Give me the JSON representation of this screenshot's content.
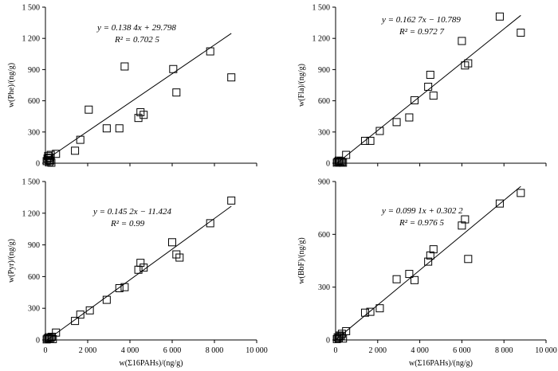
{
  "chart_data": [
    {
      "type": "scatter",
      "ylabel": "w(Phe)/(ng/g)",
      "xlabel": "",
      "xlim": [
        0,
        10000
      ],
      "ylim": [
        0,
        1500
      ],
      "xticks": [
        0,
        2000,
        4000,
        6000,
        8000,
        10000
      ],
      "xtick_labels": [
        "0",
        "2 000",
        "4 000",
        "6 000",
        "8 000",
        "10 000"
      ],
      "yticks": [
        0,
        300,
        600,
        900,
        1200,
        1500
      ],
      "ytick_labels": [
        "0",
        "300",
        "600",
        "900",
        "1 200",
        "1 500"
      ],
      "show_xtick_labels": false,
      "equation": "y = 0.138 4x + 29.798",
      "r2": "R² = 0.702 5",
      "fit": {
        "slope": 0.1384,
        "intercept": 29.798,
        "x_range": [
          0,
          8800
        ]
      },
      "points": [
        [
          60,
          20
        ],
        [
          100,
          45
        ],
        [
          130,
          70
        ],
        [
          160,
          30
        ],
        [
          180,
          10
        ],
        [
          200,
          55
        ],
        [
          230,
          25
        ],
        [
          250,
          80
        ],
        [
          280,
          5
        ],
        [
          500,
          90
        ],
        [
          1400,
          120
        ],
        [
          1650,
          225
        ],
        [
          2050,
          515
        ],
        [
          2900,
          335
        ],
        [
          3500,
          335
        ],
        [
          3750,
          930
        ],
        [
          4400,
          435
        ],
        [
          4500,
          490
        ],
        [
          4650,
          465
        ],
        [
          6050,
          905
        ],
        [
          6200,
          680
        ],
        [
          7800,
          1075
        ],
        [
          8800,
          825
        ]
      ]
    },
    {
      "type": "scatter",
      "ylabel": "w(Fla)/(ng/g)",
      "xlabel": "",
      "xlim": [
        0,
        10000
      ],
      "ylim": [
        0,
        1500
      ],
      "xticks": [
        0,
        2000,
        4000,
        6000,
        8000,
        10000
      ],
      "xtick_labels": [
        "0",
        "2 000",
        "4 000",
        "6 000",
        "8 000",
        "10 000"
      ],
      "yticks": [
        0,
        300,
        600,
        900,
        1200,
        1500
      ],
      "ytick_labels": [
        "0",
        "300",
        "600",
        "900",
        "1 200",
        "1 500"
      ],
      "show_xtick_labels": false,
      "equation": "y = 0.162 7x − 10.789",
      "r2": "R² = 0.972 7",
      "fit": {
        "slope": 0.1627,
        "intercept": -10.789,
        "x_range": [
          0,
          8800
        ]
      },
      "points": [
        [
          60,
          5
        ],
        [
          100,
          15
        ],
        [
          150,
          25
        ],
        [
          200,
          10
        ],
        [
          250,
          20
        ],
        [
          300,
          12
        ],
        [
          350,
          5
        ],
        [
          500,
          80
        ],
        [
          1400,
          215
        ],
        [
          1650,
          215
        ],
        [
          2100,
          310
        ],
        [
          2900,
          395
        ],
        [
          3500,
          440
        ],
        [
          3750,
          605
        ],
        [
          4400,
          735
        ],
        [
          4500,
          850
        ],
        [
          4650,
          650
        ],
        [
          6000,
          1175
        ],
        [
          6150,
          940
        ],
        [
          6300,
          960
        ],
        [
          7800,
          1410
        ],
        [
          8800,
          1255
        ]
      ]
    },
    {
      "type": "scatter",
      "ylabel": "w(Pyr)/(ng/g)",
      "xlabel": "w(Σ16PAHs)/(ng/g)",
      "xlim": [
        0,
        10000
      ],
      "ylim": [
        0,
        1500
      ],
      "xticks": [
        0,
        2000,
        4000,
        6000,
        8000,
        10000
      ],
      "xtick_labels": [
        "0",
        "2 000",
        "4 000",
        "6 000",
        "8 000",
        "10 000"
      ],
      "yticks": [
        0,
        300,
        600,
        900,
        1200,
        1500
      ],
      "ytick_labels": [
        "0",
        "300",
        "600",
        "900",
        "1 200",
        "1 500"
      ],
      "show_xtick_labels": true,
      "equation": "y = 0.145 2x − 11.424",
      "r2": "R² = 0.99",
      "fit": {
        "slope": 0.1452,
        "intercept": -11.424,
        "x_range": [
          0,
          8800
        ]
      },
      "points": [
        [
          60,
          5
        ],
        [
          100,
          15
        ],
        [
          150,
          25
        ],
        [
          200,
          10
        ],
        [
          250,
          20
        ],
        [
          300,
          30
        ],
        [
          350,
          8
        ],
        [
          500,
          70
        ],
        [
          1400,
          180
        ],
        [
          1650,
          240
        ],
        [
          2100,
          280
        ],
        [
          2900,
          380
        ],
        [
          3500,
          490
        ],
        [
          3750,
          500
        ],
        [
          4400,
          665
        ],
        [
          4500,
          730
        ],
        [
          4650,
          685
        ],
        [
          6000,
          925
        ],
        [
          6200,
          810
        ],
        [
          6350,
          780
        ],
        [
          7800,
          1105
        ],
        [
          8800,
          1320
        ]
      ]
    },
    {
      "type": "scatter",
      "ylabel": "w(BbF)/(ng/g)",
      "xlabel": "w(Σ16PAHs)/(ng/g)",
      "xlim": [
        0,
        10000
      ],
      "ylim": [
        0,
        900
      ],
      "xticks": [
        0,
        2000,
        4000,
        6000,
        8000,
        10000
      ],
      "xtick_labels": [
        "0",
        "2 000",
        "4 000",
        "6 000",
        "8 000",
        "10 000"
      ],
      "yticks": [
        0,
        300,
        600,
        900
      ],
      "ytick_labels": [
        "0",
        "300",
        "600",
        "900"
      ],
      "show_xtick_labels": true,
      "equation": "y = 0.099 1x + 0.302 2",
      "r2": "R² = 0.976 5",
      "fit": {
        "slope": 0.0991,
        "intercept": 0.3022,
        "x_range": [
          0,
          8800
        ]
      },
      "points": [
        [
          60,
          5
        ],
        [
          100,
          15
        ],
        [
          150,
          10
        ],
        [
          200,
          25
        ],
        [
          250,
          20
        ],
        [
          300,
          35
        ],
        [
          350,
          8
        ],
        [
          500,
          50
        ],
        [
          1400,
          155
        ],
        [
          1650,
          160
        ],
        [
          2100,
          180
        ],
        [
          2900,
          345
        ],
        [
          3500,
          375
        ],
        [
          3750,
          340
        ],
        [
          4400,
          445
        ],
        [
          4500,
          480
        ],
        [
          4650,
          515
        ],
        [
          6000,
          650
        ],
        [
          6150,
          685
        ],
        [
          6300,
          460
        ],
        [
          7800,
          775
        ],
        [
          8800,
          835
        ]
      ]
    }
  ]
}
